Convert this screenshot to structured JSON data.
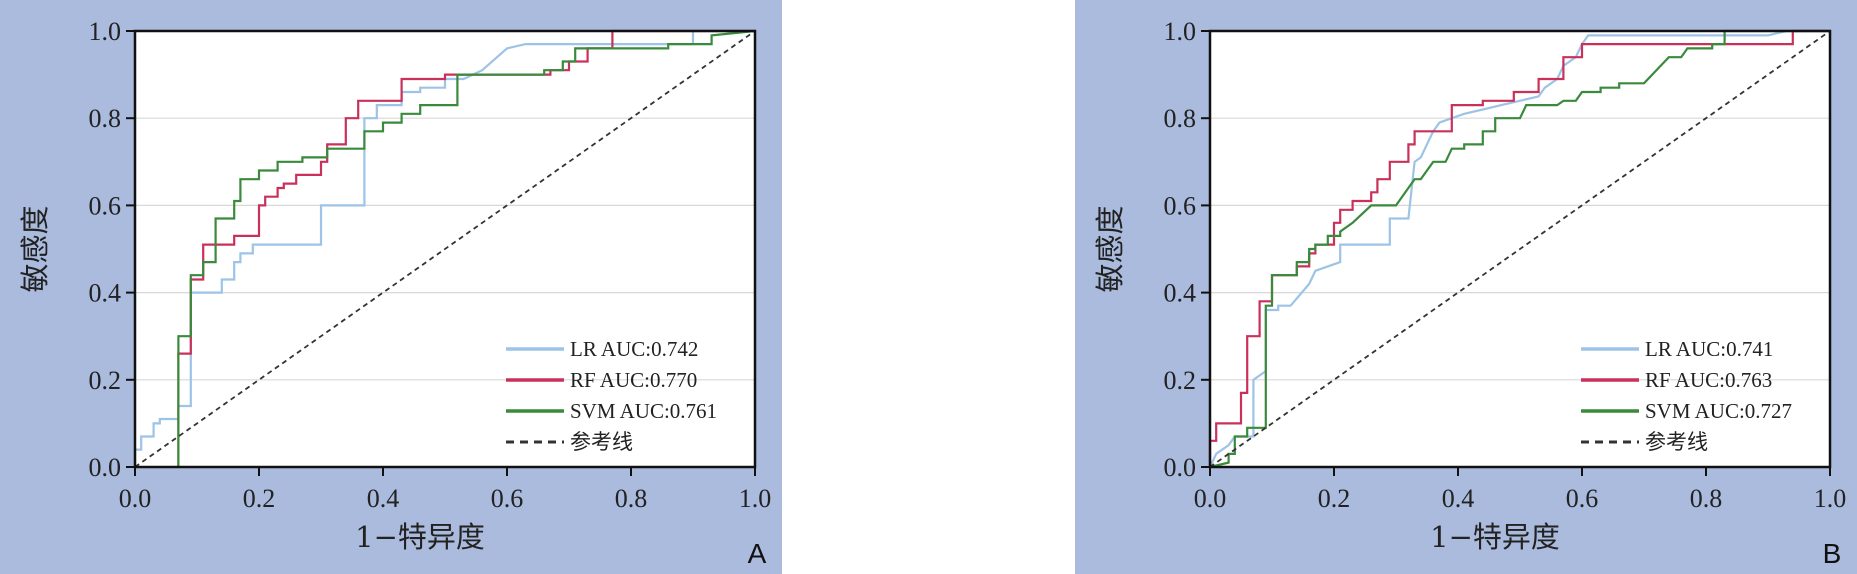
{
  "chart_data": [
    {
      "type": "line",
      "panel_label": "A",
      "xlabel": "1−特异度",
      "ylabel": "敏感度",
      "xlim": [
        0,
        1
      ],
      "ylim": [
        0,
        1
      ],
      "xticks": [
        "0.0",
        "0.2",
        "0.4",
        "0.6",
        "0.8",
        "1.0"
      ],
      "yticks": [
        "0.0",
        "0.2",
        "0.4",
        "0.6",
        "0.8",
        "1.0"
      ],
      "grid": "horizontal",
      "legend_position": "bottom-right",
      "series": [
        {
          "name": "LR AUC:0.742",
          "color": "#9dc3e6",
          "points": [
            [
              0,
              0
            ],
            [
              0,
              0.04
            ],
            [
              0.01,
              0.04
            ],
            [
              0.01,
              0.07
            ],
            [
              0.03,
              0.07
            ],
            [
              0.03,
              0.1
            ],
            [
              0.04,
              0.1
            ],
            [
              0.04,
              0.11
            ],
            [
              0.07,
              0.11
            ],
            [
              0.07,
              0.14
            ],
            [
              0.09,
              0.14
            ],
            [
              0.09,
              0.4
            ],
            [
              0.14,
              0.4
            ],
            [
              0.14,
              0.43
            ],
            [
              0.16,
              0.43
            ],
            [
              0.16,
              0.47
            ],
            [
              0.17,
              0.47
            ],
            [
              0.17,
              0.49
            ],
            [
              0.19,
              0.49
            ],
            [
              0.19,
              0.51
            ],
            [
              0.3,
              0.51
            ],
            [
              0.3,
              0.6
            ],
            [
              0.37,
              0.6
            ],
            [
              0.37,
              0.8
            ],
            [
              0.39,
              0.8
            ],
            [
              0.39,
              0.83
            ],
            [
              0.43,
              0.83
            ],
            [
              0.43,
              0.86
            ],
            [
              0.46,
              0.86
            ],
            [
              0.46,
              0.87
            ],
            [
              0.5,
              0.87
            ],
            [
              0.5,
              0.89
            ],
            [
              0.53,
              0.89
            ],
            [
              0.56,
              0.91
            ],
            [
              0.6,
              0.96
            ],
            [
              0.63,
              0.97
            ],
            [
              0.9,
              0.97
            ],
            [
              0.9,
              1.0
            ],
            [
              1,
              1
            ]
          ]
        },
        {
          "name": "RF AUC:0.770",
          "color": "#c9305a",
          "points": [
            [
              0.07,
              0
            ],
            [
              0.07,
              0.26
            ],
            [
              0.09,
              0.26
            ],
            [
              0.09,
              0.43
            ],
            [
              0.11,
              0.43
            ],
            [
              0.11,
              0.51
            ],
            [
              0.16,
              0.51
            ],
            [
              0.16,
              0.53
            ],
            [
              0.2,
              0.53
            ],
            [
              0.2,
              0.6
            ],
            [
              0.21,
              0.6
            ],
            [
              0.21,
              0.62
            ],
            [
              0.23,
              0.62
            ],
            [
              0.23,
              0.64
            ],
            [
              0.24,
              0.64
            ],
            [
              0.24,
              0.65
            ],
            [
              0.26,
              0.65
            ],
            [
              0.26,
              0.67
            ],
            [
              0.3,
              0.67
            ],
            [
              0.3,
              0.7
            ],
            [
              0.31,
              0.7
            ],
            [
              0.31,
              0.74
            ],
            [
              0.34,
              0.74
            ],
            [
              0.34,
              0.8
            ],
            [
              0.36,
              0.8
            ],
            [
              0.36,
              0.84
            ],
            [
              0.43,
              0.84
            ],
            [
              0.43,
              0.89
            ],
            [
              0.5,
              0.89
            ],
            [
              0.5,
              0.9
            ],
            [
              0.67,
              0.9
            ],
            [
              0.67,
              0.91
            ],
            [
              0.7,
              0.91
            ],
            [
              0.7,
              0.93
            ],
            [
              0.73,
              0.93
            ],
            [
              0.73,
              0.96
            ],
            [
              0.77,
              0.96
            ],
            [
              0.77,
              1.0
            ],
            [
              1,
              1
            ]
          ]
        },
        {
          "name": "SVM AUC:0.761",
          "color": "#3a8a3c",
          "points": [
            [
              0.07,
              0
            ],
            [
              0.07,
              0.3
            ],
            [
              0.09,
              0.3
            ],
            [
              0.09,
              0.44
            ],
            [
              0.11,
              0.44
            ],
            [
              0.11,
              0.47
            ],
            [
              0.13,
              0.47
            ],
            [
              0.13,
              0.57
            ],
            [
              0.16,
              0.57
            ],
            [
              0.16,
              0.61
            ],
            [
              0.17,
              0.61
            ],
            [
              0.17,
              0.66
            ],
            [
              0.2,
              0.66
            ],
            [
              0.2,
              0.68
            ],
            [
              0.23,
              0.68
            ],
            [
              0.23,
              0.7
            ],
            [
              0.27,
              0.7
            ],
            [
              0.27,
              0.71
            ],
            [
              0.31,
              0.71
            ],
            [
              0.31,
              0.73
            ],
            [
              0.37,
              0.73
            ],
            [
              0.37,
              0.77
            ],
            [
              0.4,
              0.77
            ],
            [
              0.4,
              0.79
            ],
            [
              0.43,
              0.79
            ],
            [
              0.43,
              0.81
            ],
            [
              0.46,
              0.81
            ],
            [
              0.46,
              0.83
            ],
            [
              0.5,
              0.83
            ],
            [
              0.5,
              0.83
            ],
            [
              0.52,
              0.83
            ],
            [
              0.52,
              0.9
            ],
            [
              0.66,
              0.9
            ],
            [
              0.66,
              0.91
            ],
            [
              0.69,
              0.91
            ],
            [
              0.69,
              0.93
            ],
            [
              0.71,
              0.93
            ],
            [
              0.71,
              0.96
            ],
            [
              0.86,
              0.96
            ],
            [
              0.86,
              0.97
            ],
            [
              0.93,
              0.97
            ],
            [
              0.93,
              0.99
            ],
            [
              1,
              1
            ]
          ]
        },
        {
          "name": "参考线",
          "color": "#333333",
          "dashed": true,
          "points": [
            [
              0,
              0
            ],
            [
              1,
              1
            ]
          ]
        }
      ]
    },
    {
      "type": "line",
      "panel_label": "B",
      "xlabel": "1−特异度",
      "ylabel": "敏感度",
      "xlim": [
        0,
        1
      ],
      "ylim": [
        0,
        1
      ],
      "xticks": [
        "0.0",
        "0.2",
        "0.4",
        "0.6",
        "0.8",
        "1.0"
      ],
      "yticks": [
        "0.0",
        "0.2",
        "0.4",
        "0.6",
        "0.8",
        "1.0"
      ],
      "grid": "horizontal",
      "legend_position": "bottom-right",
      "series": [
        {
          "name": "LR AUC:0.741",
          "color": "#9dc3e6",
          "points": [
            [
              0,
              0
            ],
            [
              0.01,
              0.03
            ],
            [
              0.03,
              0.05
            ],
            [
              0.04,
              0.07
            ],
            [
              0.07,
              0.07
            ],
            [
              0.07,
              0.2
            ],
            [
              0.09,
              0.22
            ],
            [
              0.09,
              0.36
            ],
            [
              0.11,
              0.36
            ],
            [
              0.11,
              0.37
            ],
            [
              0.13,
              0.37
            ],
            [
              0.16,
              0.42
            ],
            [
              0.17,
              0.45
            ],
            [
              0.21,
              0.47
            ],
            [
              0.21,
              0.51
            ],
            [
              0.29,
              0.51
            ],
            [
              0.29,
              0.57
            ],
            [
              0.32,
              0.57
            ],
            [
              0.33,
              0.7
            ],
            [
              0.34,
              0.71
            ],
            [
              0.36,
              0.77
            ],
            [
              0.37,
              0.79
            ],
            [
              0.39,
              0.8
            ],
            [
              0.41,
              0.81
            ],
            [
              0.44,
              0.82
            ],
            [
              0.47,
              0.83
            ],
            [
              0.53,
              0.85
            ],
            [
              0.54,
              0.87
            ],
            [
              0.56,
              0.89
            ],
            [
              0.57,
              0.92
            ],
            [
              0.59,
              0.94
            ],
            [
              0.6,
              0.97
            ],
            [
              0.61,
              0.99
            ],
            [
              0.9,
              0.99
            ],
            [
              0.93,
              1.0
            ],
            [
              1,
              1
            ]
          ]
        },
        {
          "name": "RF AUC:0.763",
          "color": "#c9305a",
          "points": [
            [
              0,
              0
            ],
            [
              0,
              0.06
            ],
            [
              0.01,
              0.06
            ],
            [
              0.01,
              0.1
            ],
            [
              0.05,
              0.1
            ],
            [
              0.05,
              0.17
            ],
            [
              0.06,
              0.17
            ],
            [
              0.06,
              0.3
            ],
            [
              0.08,
              0.3
            ],
            [
              0.08,
              0.38
            ],
            [
              0.1,
              0.38
            ],
            [
              0.1,
              0.44
            ],
            [
              0.14,
              0.44
            ],
            [
              0.14,
              0.46
            ],
            [
              0.16,
              0.46
            ],
            [
              0.16,
              0.49
            ],
            [
              0.17,
              0.49
            ],
            [
              0.17,
              0.51
            ],
            [
              0.2,
              0.51
            ],
            [
              0.2,
              0.56
            ],
            [
              0.21,
              0.56
            ],
            [
              0.21,
              0.59
            ],
            [
              0.23,
              0.59
            ],
            [
              0.23,
              0.61
            ],
            [
              0.26,
              0.61
            ],
            [
              0.26,
              0.63
            ],
            [
              0.27,
              0.63
            ],
            [
              0.27,
              0.66
            ],
            [
              0.29,
              0.66
            ],
            [
              0.29,
              0.7
            ],
            [
              0.32,
              0.7
            ],
            [
              0.32,
              0.74
            ],
            [
              0.33,
              0.74
            ],
            [
              0.33,
              0.77
            ],
            [
              0.39,
              0.77
            ],
            [
              0.39,
              0.83
            ],
            [
              0.44,
              0.83
            ],
            [
              0.44,
              0.84
            ],
            [
              0.49,
              0.84
            ],
            [
              0.49,
              0.86
            ],
            [
              0.53,
              0.86
            ],
            [
              0.53,
              0.89
            ],
            [
              0.57,
              0.89
            ],
            [
              0.57,
              0.94
            ],
            [
              0.6,
              0.94
            ],
            [
              0.6,
              0.97
            ],
            [
              0.94,
              0.97
            ],
            [
              0.94,
              1.0
            ],
            [
              1,
              1
            ]
          ]
        },
        {
          "name": "SVM AUC:0.727",
          "color": "#3a8a3c",
          "points": [
            [
              0,
              0
            ],
            [
              0.03,
              0.01
            ],
            [
              0.03,
              0.03
            ],
            [
              0.04,
              0.03
            ],
            [
              0.04,
              0.07
            ],
            [
              0.06,
              0.07
            ],
            [
              0.06,
              0.09
            ],
            [
              0.09,
              0.09
            ],
            [
              0.09,
              0.37
            ],
            [
              0.1,
              0.37
            ],
            [
              0.1,
              0.44
            ],
            [
              0.14,
              0.44
            ],
            [
              0.14,
              0.47
            ],
            [
              0.16,
              0.47
            ],
            [
              0.16,
              0.5
            ],
            [
              0.17,
              0.5
            ],
            [
              0.17,
              0.51
            ],
            [
              0.19,
              0.51
            ],
            [
              0.19,
              0.53
            ],
            [
              0.21,
              0.53
            ],
            [
              0.21,
              0.54
            ],
            [
              0.23,
              0.56
            ],
            [
              0.26,
              0.6
            ],
            [
              0.3,
              0.6
            ],
            [
              0.33,
              0.66
            ],
            [
              0.34,
              0.66
            ],
            [
              0.36,
              0.7
            ],
            [
              0.38,
              0.7
            ],
            [
              0.39,
              0.73
            ],
            [
              0.41,
              0.73
            ],
            [
              0.41,
              0.74
            ],
            [
              0.44,
              0.74
            ],
            [
              0.44,
              0.77
            ],
            [
              0.46,
              0.77
            ],
            [
              0.46,
              0.8
            ],
            [
              0.5,
              0.8
            ],
            [
              0.51,
              0.83
            ],
            [
              0.56,
              0.83
            ],
            [
              0.57,
              0.84
            ],
            [
              0.59,
              0.84
            ],
            [
              0.6,
              0.86
            ],
            [
              0.63,
              0.86
            ],
            [
              0.63,
              0.87
            ],
            [
              0.66,
              0.87
            ],
            [
              0.66,
              0.88
            ],
            [
              0.7,
              0.88
            ],
            [
              0.74,
              0.94
            ],
            [
              0.76,
              0.94
            ],
            [
              0.77,
              0.96
            ],
            [
              0.81,
              0.96
            ],
            [
              0.81,
              0.97
            ],
            [
              0.83,
              0.97
            ],
            [
              0.83,
              1.0
            ],
            [
              1,
              1
            ]
          ]
        },
        {
          "name": "参考线",
          "color": "#333333",
          "dashed": true,
          "points": [
            [
              0,
              0
            ],
            [
              1,
              1
            ]
          ]
        }
      ]
    }
  ]
}
